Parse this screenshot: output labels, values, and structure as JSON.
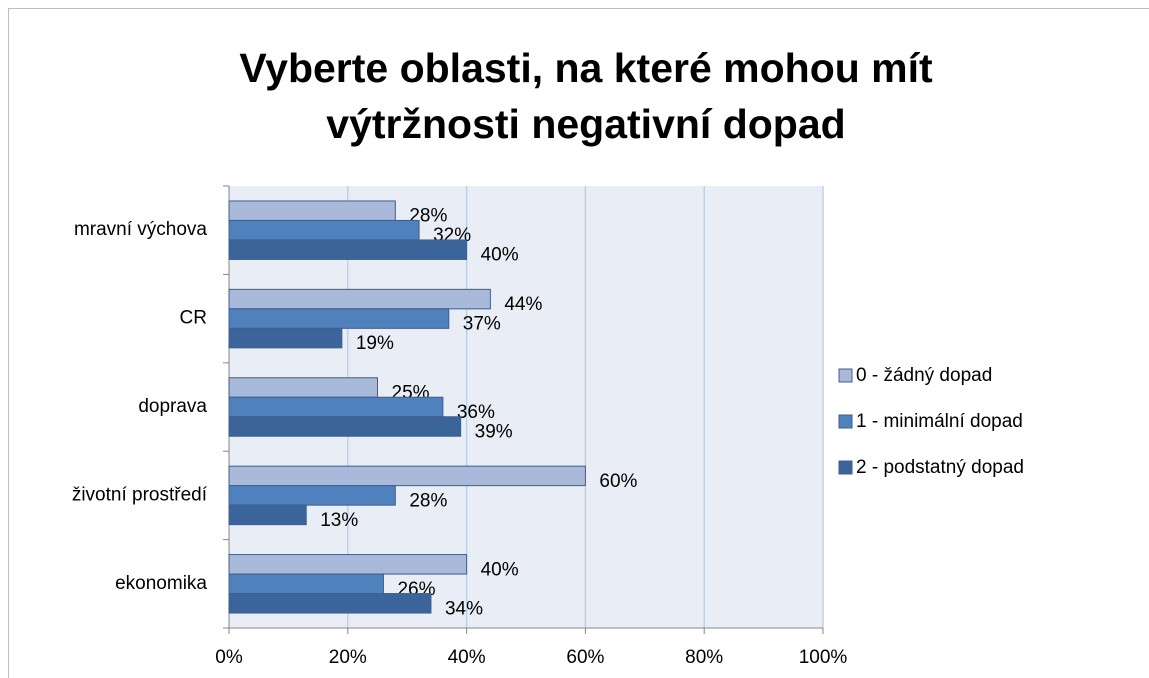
{
  "chart_data": {
    "type": "hbar",
    "title": "Vyberte oblasti, na které mohou mít výtržnosti negativní dopad",
    "categories": [
      "mravní výchova",
      "CR",
      "doprava",
      "životní prostředí",
      "ekonomika"
    ],
    "series": [
      {
        "name": "0 - žádný dopad",
        "color": "#a9b9d9",
        "values": [
          28,
          44,
          25,
          60,
          40
        ],
        "value_labels": [
          "28%",
          "44%",
          "25%",
          "60%",
          "40%"
        ]
      },
      {
        "name": "1 - minimální dopad",
        "color": "#4f81bd",
        "values": [
          32,
          37,
          36,
          28,
          26
        ],
        "value_labels": [
          "32%",
          "37%",
          "36%",
          "28%",
          "26%"
        ]
      },
      {
        "name": "2 - podstatný dopad",
        "color": "#3b659a",
        "values": [
          40,
          19,
          39,
          13,
          34
        ],
        "value_labels": [
          "40%",
          "19%",
          "39%",
          "13%",
          "34%"
        ]
      }
    ],
    "xlim": [
      0,
      100
    ],
    "xticks": [
      {
        "value": 0,
        "label": "0%"
      },
      {
        "value": 20,
        "label": "20%"
      },
      {
        "value": 40,
        "label": "40%"
      },
      {
        "value": 60,
        "label": "60%"
      },
      {
        "value": 80,
        "label": "80%"
      },
      {
        "value": 100,
        "label": "100%"
      }
    ],
    "grid": true,
    "legend": "right"
  }
}
